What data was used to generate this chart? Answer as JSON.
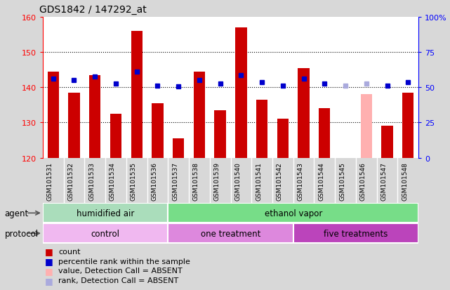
{
  "title": "GDS1842 / 147292_at",
  "samples": [
    "GSM101531",
    "GSM101532",
    "GSM101533",
    "GSM101534",
    "GSM101535",
    "GSM101536",
    "GSM101537",
    "GSM101538",
    "GSM101539",
    "GSM101540",
    "GSM101541",
    "GSM101542",
    "GSM101543",
    "GSM101544",
    "GSM101545",
    "GSM101546",
    "GSM101547",
    "GSM101548"
  ],
  "count_values": [
    144.5,
    138.5,
    143.5,
    132.5,
    156.0,
    135.5,
    125.5,
    144.5,
    133.5,
    157.0,
    136.5,
    131.0,
    145.5,
    134.0,
    120.0,
    138.0,
    129.0,
    138.5
  ],
  "percentile_values": [
    142.5,
    142.0,
    143.0,
    141.0,
    144.5,
    140.5,
    140.2,
    142.0,
    141.0,
    143.5,
    141.5,
    140.5,
    142.5,
    141.0,
    140.5,
    141.0,
    140.5,
    141.5
  ],
  "absent_mask": [
    false,
    false,
    false,
    false,
    false,
    false,
    false,
    false,
    false,
    false,
    false,
    false,
    false,
    false,
    true,
    true,
    false,
    false
  ],
  "bar_color_present": "#cc0000",
  "bar_color_absent": "#ffb0b0",
  "dot_color_present": "#0000cc",
  "dot_color_absent": "#aaaadd",
  "ylim_left": [
    120,
    160
  ],
  "ylim_right": [
    0,
    100
  ],
  "yticks_left": [
    120,
    130,
    140,
    150,
    160
  ],
  "yticks_right": [
    0,
    25,
    50,
    75,
    100
  ],
  "bar_width": 0.55,
  "agent_groups": [
    {
      "label": "humidified air",
      "start": 0,
      "end": 6
    },
    {
      "label": "ethanol vapor",
      "start": 6,
      "end": 18
    }
  ],
  "protocol_groups": [
    {
      "label": "control",
      "start": 0,
      "end": 6,
      "color": "#f0b0f0"
    },
    {
      "label": "one treatment",
      "start": 6,
      "end": 12,
      "color": "#ee88ee"
    },
    {
      "label": "five treatments",
      "start": 12,
      "end": 18,
      "color": "#cc44cc"
    }
  ],
  "agent_color_1": "#aaeebb",
  "agent_color_2": "#66dd77",
  "legend_items": [
    {
      "label": "count",
      "color": "#cc0000"
    },
    {
      "label": "percentile rank within the sample",
      "color": "#0000cc"
    },
    {
      "label": "value, Detection Call = ABSENT",
      "color": "#ffb0b0"
    },
    {
      "label": "rank, Detection Call = ABSENT",
      "color": "#aaaadd"
    }
  ],
  "bg_color": "#d8d8d8",
  "plot_bg_color": "#ffffff",
  "tick_bg_color": "#cccccc"
}
